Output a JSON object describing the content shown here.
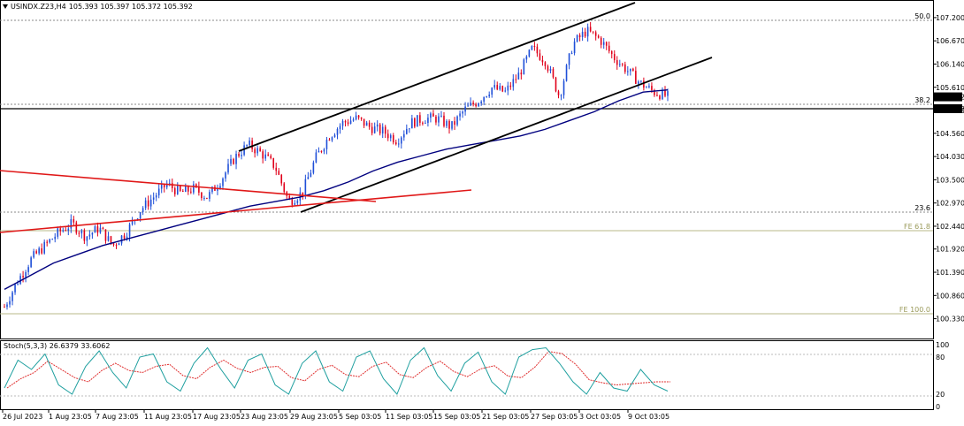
{
  "header": {
    "symbol": "USINDX.Z23,H4",
    "ohlc": "105.393 105.397 105.372 105.392",
    "menu_icon": "triangle-down-icon"
  },
  "price_axis": {
    "labels": [
      "107.200",
      "106.670",
      "106.140",
      "105.610",
      "105.080",
      "104.560",
      "104.030",
      "103.500",
      "102.970",
      "102.440",
      "101.920",
      "101.390",
      "100.860",
      "100.330"
    ],
    "current_price": "105.392",
    "level_price": "105.122"
  },
  "stoch_axis": {
    "labels": [
      "100",
      "80",
      "20",
      "0"
    ],
    "indicator_label": "Stoch(5,3,3) 26.6379 33.6062"
  },
  "time_axis": {
    "labels": [
      "26 Jul 2023",
      "1 Aug 23:05",
      "7 Aug 23:05",
      "11 Aug 23:05",
      "17 Aug 23:05",
      "23 Aug 23:05",
      "29 Aug 23:05",
      "5 Sep 03:05",
      "11 Sep 03:05",
      "15 Sep 03:05",
      "21 Sep 03:05",
      "27 Sep 03:05",
      "3 Oct 03:05",
      "9 Oct 03:05"
    ]
  },
  "fib_levels": [
    {
      "label": "50.0",
      "color": "#000000"
    },
    {
      "label": "38.2",
      "color": "#000000"
    },
    {
      "label": "23.6",
      "color": "#000000"
    },
    {
      "label": "FE 61.8",
      "color": "#9a9a5a"
    },
    {
      "label": "FE 100.0",
      "color": "#9a9a5a"
    }
  ],
  "colors": {
    "bull": "#1f4fd8",
    "bear": "#e0001a",
    "ma": "#00007f",
    "channel": "#000000",
    "trend_red": "#e01818",
    "stoch_main": "#20a0a0",
    "stoch_signal": "#e03030"
  },
  "chart_data": {
    "type": "candlestick",
    "title": "USINDX.Z23,H4",
    "ylim": [
      100.1,
      107.4
    ],
    "x": [
      "26 Jul 2023",
      "1 Aug 23:05",
      "7 Aug 23:05",
      "11 Aug 23:05",
      "17 Aug 23:05",
      "23 Aug 23:05",
      "29 Aug 23:05",
      "5 Sep 03:05",
      "11 Sep 03:05",
      "15 Sep 03:05",
      "21 Sep 03:05",
      "27 Sep 03:05",
      "3 Oct 03:05",
      "9 Oct 03:05"
    ],
    "close_path": [
      100.6,
      101.2,
      101.7,
      102.0,
      102.3,
      102.5,
      102.2,
      102.4,
      102.0,
      102.3,
      102.8,
      103.1,
      103.4,
      103.2,
      103.3,
      103.1,
      103.5,
      104.0,
      104.3,
      104.1,
      103.8,
      103.0,
      103.2,
      104.0,
      104.5,
      104.8,
      104.9,
      104.7,
      104.6,
      104.4,
      104.8,
      104.9,
      104.9,
      104.7,
      105.1,
      105.3,
      105.6,
      105.5,
      105.9,
      106.5,
      106.2,
      105.4,
      106.6,
      106.9,
      106.7,
      106.3,
      106.0,
      105.7,
      105.5,
      105.4
    ],
    "last_close": 105.392,
    "ma_path": [
      101.0,
      101.3,
      101.6,
      101.8,
      102.0,
      102.15,
      102.3,
      102.45,
      102.6,
      102.75,
      102.9,
      103.0,
      103.1,
      103.25,
      103.45,
      103.7,
      103.9,
      104.05,
      104.2,
      104.3,
      104.4,
      104.5,
      104.65,
      104.85,
      105.05,
      105.3,
      105.5,
      105.55
    ],
    "horizontal_level": 105.122,
    "stoch_k": [
      30,
      75,
      60,
      85,
      35,
      20,
      65,
      90,
      55,
      30,
      80,
      85,
      40,
      25,
      70,
      95,
      60,
      30,
      75,
      85,
      35,
      20,
      70,
      90,
      40,
      25,
      80,
      90,
      45,
      20,
      75,
      95,
      50,
      25,
      70,
      88,
      40,
      20,
      80,
      92,
      95,
      70,
      40,
      20,
      55,
      30,
      25,
      60,
      35,
      25
    ],
    "stoch_last": {
      "k": 26.6379,
      "d": 33.6062
    }
  }
}
